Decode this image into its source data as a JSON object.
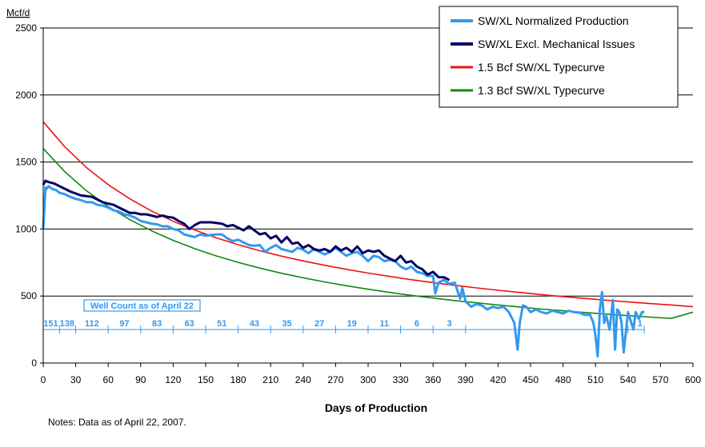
{
  "chart_data": {
    "type": "line",
    "xlabel": "Days of Production",
    "ylabel": "Mcf/d",
    "xlim": [
      0,
      600
    ],
    "ylim": [
      0,
      2500
    ],
    "x_ticks": [
      0,
      30,
      60,
      90,
      120,
      150,
      180,
      210,
      240,
      270,
      300,
      330,
      360,
      390,
      420,
      450,
      480,
      510,
      540,
      570,
      600
    ],
    "y_ticks": [
      0,
      500,
      1000,
      1500,
      2000,
      2500
    ],
    "grid": "horizontal",
    "legend_position": "top-right",
    "colors": {
      "normalized": "#3399ee",
      "excl_mechanical": "#000066",
      "typecurve_15": "#ee1111",
      "typecurve_13": "#118811",
      "well_count": "#3399ee"
    },
    "series": [
      {
        "name": "SW/XL Normalized Production",
        "x": [
          0,
          1,
          2,
          3,
          5,
          8,
          12,
          15,
          20,
          25,
          30,
          35,
          40,
          45,
          50,
          55,
          60,
          65,
          70,
          75,
          80,
          85,
          90,
          95,
          100,
          105,
          110,
          115,
          120,
          125,
          130,
          135,
          140,
          145,
          150,
          155,
          160,
          165,
          170,
          175,
          180,
          185,
          190,
          195,
          200,
          205,
          210,
          215,
          220,
          225,
          230,
          235,
          240,
          245,
          250,
          255,
          260,
          265,
          270,
          275,
          280,
          285,
          290,
          295,
          300,
          305,
          310,
          315,
          320,
          325,
          330,
          335,
          340,
          345,
          350,
          355,
          360,
          362,
          365,
          370,
          375,
          380,
          385,
          387,
          390,
          395,
          400,
          405,
          410,
          415,
          420,
          425,
          430,
          435,
          438,
          440,
          443,
          446,
          450,
          455,
          460,
          465,
          470,
          475,
          480,
          485,
          490,
          495,
          500,
          505,
          508,
          510,
          512,
          514,
          516,
          518,
          520,
          523,
          526,
          528,
          530,
          532,
          534,
          536,
          540,
          543,
          545,
          547,
          550,
          553,
          555
        ],
        "y": [
          1000,
          1150,
          1310,
          1300,
          1320,
          1300,
          1290,
          1270,
          1260,
          1240,
          1225,
          1215,
          1200,
          1200,
          1180,
          1175,
          1160,
          1140,
          1130,
          1110,
          1100,
          1085,
          1060,
          1050,
          1040,
          1035,
          1020,
          1020,
          1000,
          990,
          960,
          950,
          940,
          960,
          950,
          955,
          960,
          960,
          930,
          910,
          920,
          900,
          880,
          875,
          880,
          830,
          860,
          880,
          850,
          840,
          830,
          860,
          845,
          820,
          850,
          830,
          810,
          830,
          860,
          830,
          800,
          820,
          830,
          800,
          760,
          800,
          790,
          760,
          770,
          760,
          720,
          700,
          720,
          680,
          670,
          650,
          650,
          520,
          600,
          620,
          590,
          600,
          480,
          560,
          460,
          420,
          440,
          430,
          400,
          420,
          410,
          420,
          380,
          300,
          100,
          300,
          430,
          420,
          380,
          400,
          380,
          370,
          390,
          380,
          370,
          390,
          380,
          375,
          360,
          360,
          300,
          200,
          50,
          400,
          530,
          300,
          350,
          250,
          470,
          100,
          400,
          380,
          300,
          80,
          380,
          300,
          250,
          380,
          330,
          380,
          380
        ]
      },
      {
        "name": "SW/XL Excl. Mechanical Issues",
        "x": [
          0,
          2,
          5,
          10,
          15,
          20,
          25,
          30,
          35,
          40,
          45,
          50,
          55,
          60,
          65,
          70,
          75,
          80,
          85,
          90,
          95,
          100,
          105,
          110,
          115,
          120,
          125,
          130,
          135,
          140,
          145,
          150,
          155,
          160,
          165,
          170,
          175,
          180,
          185,
          190,
          195,
          200,
          205,
          210,
          215,
          220,
          225,
          230,
          235,
          240,
          245,
          250,
          255,
          260,
          265,
          270,
          275,
          280,
          285,
          290,
          295,
          300,
          305,
          310,
          315,
          320,
          325,
          330,
          335,
          340,
          345,
          350,
          355,
          360,
          365,
          370,
          375
        ],
        "y": [
          1330,
          1360,
          1350,
          1340,
          1320,
          1300,
          1280,
          1265,
          1250,
          1245,
          1240,
          1220,
          1200,
          1190,
          1180,
          1160,
          1140,
          1120,
          1120,
          1110,
          1110,
          1100,
          1090,
          1100,
          1090,
          1085,
          1060,
          1040,
          1000,
          1030,
          1050,
          1050,
          1050,
          1045,
          1040,
          1020,
          1030,
          1010,
          990,
          1020,
          990,
          960,
          970,
          930,
          950,
          900,
          940,
          890,
          900,
          860,
          880,
          850,
          840,
          850,
          830,
          870,
          840,
          860,
          830,
          870,
          820,
          840,
          830,
          840,
          800,
          780,
          760,
          800,
          750,
          760,
          720,
          700,
          660,
          680,
          640,
          640,
          620
        ]
      },
      {
        "name": "1.5 Bcf SW/XL Typecurve",
        "x": [
          0,
          20,
          40,
          60,
          80,
          100,
          120,
          140,
          160,
          180,
          200,
          220,
          240,
          260,
          280,
          300,
          320,
          340,
          360,
          380,
          400,
          420,
          440,
          460,
          480,
          500,
          520,
          540,
          560,
          580,
          600
        ],
        "y": [
          1800,
          1612,
          1458,
          1331,
          1225,
          1135,
          1058,
          992,
          934,
          883,
          838,
          798,
          762,
          729,
          699,
          671,
          646,
          622,
          600,
          580,
          561,
          543,
          527,
          511,
          496,
          482,
          469,
          456,
          444,
          433,
          420
        ]
      },
      {
        "name": "1.3 Bcf SW/XL Typecurve",
        "x": [
          0,
          20,
          40,
          60,
          80,
          100,
          120,
          140,
          160,
          180,
          200,
          220,
          240,
          260,
          280,
          300,
          320,
          340,
          360,
          380,
          400,
          420,
          440,
          460,
          480,
          500,
          520,
          540,
          560,
          580,
          600
        ],
        "y": [
          1600,
          1427,
          1285,
          1168,
          1070,
          987,
          915,
          853,
          799,
          751,
          708,
          670,
          636,
          605,
          577,
          551,
          527,
          505,
          485,
          466,
          449,
          433,
          418,
          403,
          390,
          377,
          365,
          354,
          343,
          333,
          380
        ]
      }
    ],
    "annotation": {
      "label": "Well Count as of April 22",
      "line_y": 220,
      "tick_days": [
        0,
        15,
        30,
        60,
        90,
        120,
        150,
        180,
        210,
        240,
        270,
        300,
        330,
        360,
        390,
        540,
        555
      ],
      "counts": [
        {
          "day": 7,
          "label": "151"
        },
        {
          "day": 22,
          "label": "138"
        },
        {
          "day": 45,
          "label": "112"
        },
        {
          "day": 75,
          "label": "97"
        },
        {
          "day": 105,
          "label": "83"
        },
        {
          "day": 135,
          "label": "63"
        },
        {
          "day": 165,
          "label": "51"
        },
        {
          "day": 195,
          "label": "43"
        },
        {
          "day": 225,
          "label": "35"
        },
        {
          "day": 255,
          "label": "27"
        },
        {
          "day": 285,
          "label": "19"
        },
        {
          "day": 315,
          "label": "11"
        },
        {
          "day": 345,
          "label": "6"
        },
        {
          "day": 375,
          "label": "3"
        },
        {
          "day": 551,
          "label": "1"
        }
      ]
    }
  },
  "notes": "Notes:  Data as of April 22, 2007."
}
